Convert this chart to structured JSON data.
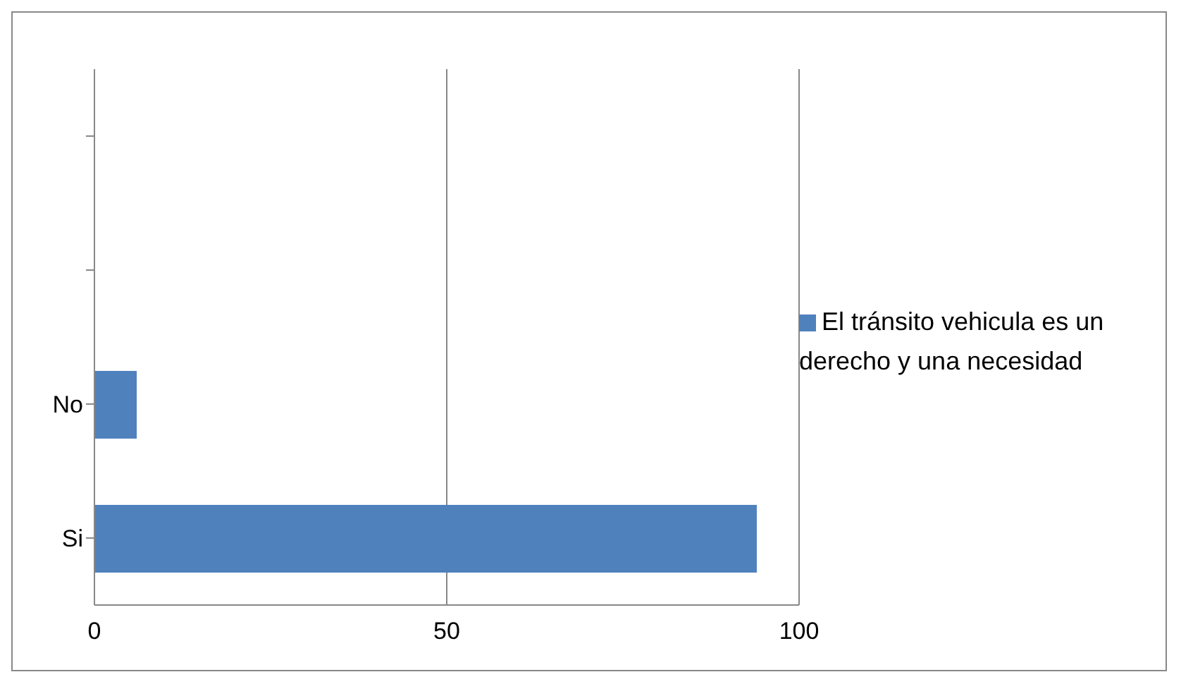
{
  "chart_data": {
    "type": "bar",
    "orientation": "horizontal",
    "categories": [
      null,
      null,
      "No",
      "Si"
    ],
    "series": [
      {
        "name": "El tránsito vehicula es un derecho y una necesidad",
        "color": "#4f81bd",
        "values": [
          null,
          null,
          6,
          94
        ]
      }
    ],
    "xlim": [
      0,
      100
    ],
    "xticks": [
      0,
      50,
      100
    ],
    "grid": "x",
    "legend": "right"
  }
}
